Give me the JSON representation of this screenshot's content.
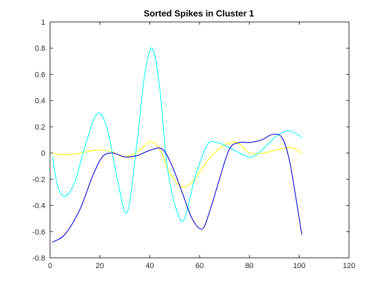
{
  "chart_data": {
    "type": "line",
    "title": "Sorted Spikes in Cluster 1",
    "xlabel": "",
    "ylabel": "",
    "xlim": [
      0,
      120
    ],
    "ylim": [
      -0.8,
      1
    ],
    "xticks": [
      0,
      20,
      40,
      60,
      80,
      100,
      120
    ],
    "xtick_labels": [
      "0",
      "20",
      "40",
      "60",
      "80",
      "100",
      "120"
    ],
    "yticks": [
      -0.8,
      -0.6,
      -0.4,
      -0.2,
      0,
      0.2,
      0.4,
      0.6,
      0.8,
      1
    ],
    "ytick_labels": [
      "-0.8",
      "-0.6",
      "-0.4",
      "-0.2",
      "0",
      "0.2",
      "0.4",
      "0.6",
      "0.8",
      "1"
    ],
    "grid": false,
    "legend": "none",
    "series": [
      {
        "color": "#ffff00",
        "x": [
          1,
          6,
          12,
          18,
          24,
          30,
          36,
          40,
          44,
          48,
          53,
          58,
          64,
          70,
          75,
          80,
          86,
          92,
          97,
          101
        ],
        "y": [
          0.0,
          -0.015,
          0.0,
          0.02,
          0.015,
          -0.03,
          0.02,
          0.085,
          0.03,
          -0.15,
          -0.26,
          -0.2,
          -0.04,
          0.06,
          0.08,
          0.0,
          0.0,
          0.03,
          0.04,
          0.0
        ]
      },
      {
        "color": "#00ffff",
        "x": [
          1,
          3,
          6,
          10,
          14,
          19,
          23,
          27,
          31,
          35,
          38,
          41,
          44,
          47,
          51,
          54,
          58,
          63,
          67,
          71,
          76,
          81,
          86,
          91,
          96,
          101
        ],
        "y": [
          -0.03,
          -0.25,
          -0.33,
          -0.22,
          0.05,
          0.3,
          0.18,
          -0.2,
          -0.45,
          0.1,
          0.6,
          0.8,
          0.5,
          -0.1,
          -0.45,
          -0.5,
          -0.2,
          0.06,
          0.08,
          0.05,
          0.0,
          -0.03,
          0.04,
          0.13,
          0.17,
          0.12
        ]
      },
      {
        "color": "#0000cd",
        "x": [
          1,
          6,
          12,
          17,
          21,
          25,
          30,
          35,
          40,
          45,
          49,
          53,
          57,
          61,
          64,
          68,
          72,
          76,
          80,
          85,
          89,
          93,
          96,
          99,
          101
        ],
        "y": [
          -0.68,
          -0.62,
          -0.43,
          -0.18,
          -0.03,
          0.0,
          -0.03,
          -0.02,
          0.02,
          0.03,
          -0.1,
          -0.3,
          -0.5,
          -0.58,
          -0.45,
          -0.2,
          0.03,
          0.08,
          0.08,
          0.1,
          0.14,
          0.12,
          -0.05,
          -0.38,
          -0.62
        ]
      }
    ]
  }
}
